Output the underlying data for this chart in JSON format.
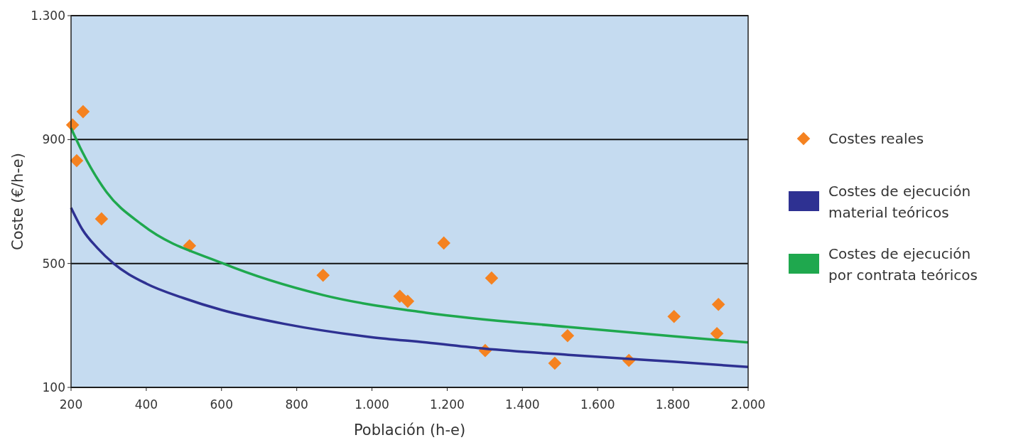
{
  "chart_data": {
    "type": "scatter",
    "xlabel": "Población (h-e)",
    "ylabel": "Coste (€/h-e)",
    "xlim": [
      200,
      2000
    ],
    "xticks": [
      200,
      400,
      600,
      800,
      {
        "value": 1000,
        "label": "1.000"
      },
      {
        "value": 1200,
        "label": "1.200"
      },
      {
        "value": 1400,
        "label": "1.400"
      },
      {
        "value": 1600,
        "label": "1.600"
      },
      {
        "value": 1800,
        "label": "1.800"
      },
      {
        "value": 2000,
        "label": "2.000"
      }
    ],
    "ylim": [
      100,
      1300
    ],
    "yticks": [
      100,
      500,
      900,
      {
        "value": 1300,
        "label": "1.300"
      }
    ],
    "grid": "y",
    "legend": "right",
    "series": [
      {
        "name": "Costes reales",
        "marker": "diamond",
        "color": "#f58220",
        "x": [
          204,
          232,
          215,
          281,
          515,
          870,
          1074,
          1095,
          1191,
          1318,
          1301,
          1486,
          1520,
          1683,
          1803,
          1921,
          1917
        ],
        "values": [
          947,
          990,
          832,
          644,
          557,
          462,
          394,
          378,
          566,
          453,
          219,
          178,
          267,
          187,
          329,
          368,
          274
        ]
      },
      {
        "name": "Costes de ejecución material teóricos",
        "type": "line",
        "color": "#2e3192",
        "x": [
          200,
          230,
          270,
          313,
          400,
          500,
          600,
          767,
          1000,
          1144,
          1300,
          1522,
          1800,
          2000
        ],
        "values": [
          680,
          610,
          550,
          500,
          435,
          388,
          350,
          305,
          262,
          245,
          225,
          205,
          183,
          166
        ]
      },
      {
        "name": "Costes de ejecución por contrata teóricos",
        "type": "line",
        "color": "#1fa84e",
        "x": [
          200,
          230,
          294,
          389,
          602,
          870,
          1144,
          1522,
          1800,
          2000
        ],
        "values": [
          937,
          860,
          731,
          625,
          501,
          398,
          341,
          295,
          265,
          245
        ]
      }
    ]
  }
}
